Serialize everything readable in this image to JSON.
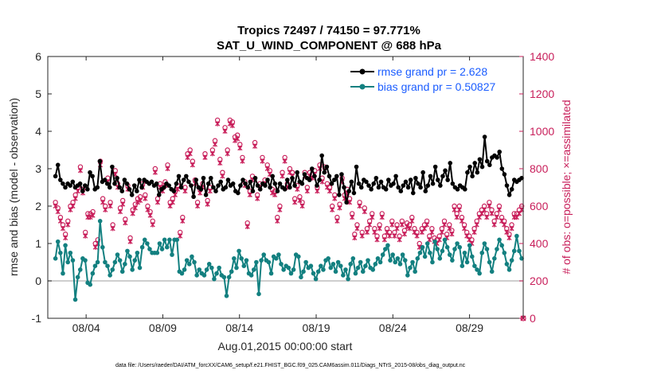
{
  "chart_data": {
    "type": "line",
    "title": "Tropics 72497 / 74150 = 97.771%",
    "subtitle": "SAT_U_WIND_COMPONENT @ 688 hPa",
    "xlabel": "Aug.01,2015 00:00:00 start",
    "ylabel": "rmse and bias (model - observation)",
    "y2label": "# of obs: o=possible; ×=assimilated",
    "xlim": [
      0.5,
      31.5
    ],
    "ylim": [
      -1,
      6
    ],
    "y2lim": [
      0,
      1400
    ],
    "x_ticks": [
      3,
      8,
      13,
      18,
      23,
      28
    ],
    "x_tick_labels": [
      "08/04",
      "08/09",
      "08/14",
      "08/19",
      "08/24",
      "08/29"
    ],
    "y_ticks": [
      -1,
      0,
      1,
      2,
      3,
      4,
      5,
      6
    ],
    "y2_ticks": [
      0,
      200,
      400,
      600,
      800,
      1000,
      1200,
      1400
    ],
    "zero_line": 0,
    "footer": "data file: /Users/raeder/DAI/ATM_forcXX/CAM6_setup/f.e21.FHIST_BGC.f09_025.CAM6assim.011/Diags_NTrS_2015-08/obs_diag_output.nc",
    "legend_position": "top-right",
    "series": [
      {
        "name": "rmse grand pr = 2.628",
        "color": "#000000",
        "axis": "left",
        "values": [
          2.8,
          3.1,
          2.7,
          2.6,
          2.5,
          2.6,
          2.55,
          2.65,
          2.5,
          2.55,
          2.6,
          2.4,
          2.55,
          2.45,
          2.9,
          2.8,
          2.45,
          2.5,
          3.2,
          2.65,
          2.7,
          2.6,
          2.5,
          3.05,
          2.6,
          2.75,
          2.5,
          2.4,
          2.7,
          2.6,
          2.45,
          2.3,
          2.55,
          2.4,
          2.7,
          2.5,
          2.7,
          2.65,
          2.6,
          2.65,
          2.55,
          2.6,
          2.3,
          2.45,
          2.5,
          2.6,
          2.55,
          2.45,
          2.4,
          2.6,
          2.8,
          2.5,
          2.7,
          2.8,
          2.65,
          2.55,
          2.25,
          2.7,
          2.5,
          2.45,
          2.75,
          2.3,
          2.6,
          2.75,
          2.5,
          2.4,
          2.55,
          2.65,
          2.45,
          2.5,
          2.7,
          2.55,
          2.6,
          2.4,
          2.35,
          2.55,
          2.7,
          2.6,
          2.5,
          2.65,
          2.4,
          2.75,
          2.55,
          2.45,
          2.6,
          2.55,
          2.7,
          2.5,
          2.8,
          2.6,
          2.4,
          2.6,
          2.5,
          2.45,
          2.7,
          2.5,
          2.75,
          2.55,
          2.9,
          2.65,
          2.6,
          2.85,
          2.75,
          2.7,
          3.0,
          2.8,
          2.55,
          2.7,
          3.35,
          2.9,
          3.05,
          2.8,
          2.6,
          2.7,
          2.8,
          2.3,
          2.85,
          2.5,
          2.1,
          2.4,
          2.65,
          2.35,
          3.05,
          2.6,
          2.5,
          2.7,
          2.65,
          2.55,
          2.45,
          2.6,
          2.75,
          2.5,
          2.65,
          2.5,
          2.45,
          2.7,
          2.55,
          2.6,
          2.8,
          2.5,
          2.4,
          2.55,
          2.65,
          2.5,
          2.7,
          2.35,
          2.75,
          2.6,
          2.5,
          2.9,
          2.4,
          2.55,
          2.8,
          2.6,
          3.05,
          2.7,
          2.55,
          2.8,
          2.95,
          2.7,
          3.15,
          2.6,
          2.5,
          2.45,
          2.55,
          2.5,
          2.45,
          2.9,
          3.05,
          2.8,
          3.15,
          2.9,
          3.25,
          3.05,
          3.85,
          3.2,
          3.1,
          3.3,
          3.35,
          3.3,
          3.45,
          3.0,
          2.85,
          2.55,
          2.3,
          2.45,
          2.7,
          2.65,
          2.7,
          2.75
        ]
      },
      {
        "name": "bias grand pr = 0.50827",
        "color": "#138080",
        "axis": "left",
        "values": [
          0.6,
          1.05,
          0.75,
          0.2,
          0.95,
          0.5,
          0.75,
          0.55,
          -0.5,
          0.1,
          0.3,
          0.6,
          0.55,
          -0.05,
          -0.1,
          0.2,
          0.4,
          0.5,
          1.6,
          0.9,
          0.5,
          0.4,
          0.15,
          0.3,
          0.5,
          0.7,
          0.55,
          0.25,
          0.45,
          0.8,
          0.65,
          0.3,
          0.55,
          0.75,
          0.35,
          0.9,
          1.1,
          1.0,
          0.85,
          0.75,
          0.75,
          0.75,
          1.0,
          0.85,
          1.1,
          0.9,
          1.1,
          0.7,
          1.1,
          1.1,
          0.25,
          0.2,
          0.3,
          0.55,
          0.45,
          0.65,
          0.5,
          0.15,
          0.3,
          0.2,
          0.15,
          0.3,
          0.45,
          0.35,
          0.05,
          0.2,
          0.35,
          0.15,
          0.1,
          -0.4,
          0.1,
          0.25,
          0.6,
          0.35,
          0.8,
          0.6,
          0.4,
          0.55,
          0.2,
          0.15,
          0.3,
          0.5,
          -0.35,
          0.55,
          0.7,
          0.55,
          0.5,
          0.2,
          0.65,
          0.6,
          0.7,
          0.45,
          0.3,
          0.4,
          0.35,
          0.2,
          0.3,
          0.7,
          0.65,
          0.1,
          0.25,
          0.5,
          0.35,
          0.4,
          0.2,
          0.05,
          0.25,
          0.4,
          0.3,
          0.55,
          0.6,
          0.35,
          0.45,
          0.25,
          0.5,
          0.4,
          0.15,
          0.3,
          0.05,
          0.45,
          0.6,
          0.2,
          0.35,
          0.5,
          0.25,
          0.4,
          0.55,
          0.35,
          0.3,
          0.45,
          0.6,
          0.5,
          0.7,
          0.85,
          0.95,
          0.55,
          0.7,
          0.5,
          0.6,
          0.45,
          0.7,
          0.55,
          0.15,
          0.35,
          0.5,
          0.25,
          0.6,
          0.75,
          0.9,
          0.65,
          1.0,
          0.75,
          0.5,
          1.05,
          0.85,
          0.6,
          0.8,
          1.1,
          0.9,
          0.7,
          0.55,
          0.85,
          1.0,
          0.9,
          0.4,
          0.75,
          0.5,
          0.95,
          0.65,
          0.4,
          0.3,
          0.2,
          0.75,
          1.0,
          0.85,
          0.5,
          0.25,
          0.6,
          0.85,
          1.1,
          0.95,
          0.75,
          0.45,
          0.3,
          0.55,
          0.8,
          1.2,
          0.8,
          0.6
        ]
      }
    ],
    "obs_possible": {
      "marker": "o",
      "color": "#c81e5a",
      "axis": "right",
      "values": [
        620,
        590,
        540,
        500,
        450,
        520,
        600,
        620,
        660,
        700,
        810,
        690,
        460,
        560,
        560,
        570,
        400,
        420,
        840,
        640,
        600,
        750,
        620,
        500,
        790,
        720,
        590,
        630,
        530,
        710,
        430,
        580,
        610,
        640,
        650,
        720,
        660,
        600,
        570,
        520,
        800,
        640,
        720,
        700,
        730,
        820,
        620,
        640,
        680,
        710,
        460,
        540,
        700,
        880,
        900,
        840,
        740,
        620,
        690,
        720,
        880,
        630,
        700,
        900,
        950,
        1060,
        850,
        780,
        1020,
        900,
        1060,
        1050,
        970,
        980,
        930,
        860,
        730,
        510,
        680,
        760,
        940,
        660,
        720,
        860,
        740,
        820,
        790,
        690,
        680,
        540,
        600,
        780,
        860,
        720,
        800,
        780,
        640,
        710,
        650,
        620,
        780,
        700,
        780,
        770,
        790,
        700,
        820,
        750,
        810,
        720,
        700,
        600,
        660,
        540,
        610,
        750,
        660,
        690,
        640,
        560,
        450,
        500,
        620,
        460,
        590,
        480,
        520,
        560,
        480,
        440,
        500,
        560,
        440,
        480,
        460,
        520,
        460,
        500,
        440,
        520,
        470,
        510,
        500,
        540,
        480,
        460,
        400,
        480,
        500,
        520,
        440,
        480,
        430,
        420,
        440,
        480,
        520,
        450,
        500,
        470,
        600,
        560,
        600,
        540,
        500,
        460,
        440,
        420,
        480,
        520,
        560,
        580,
        600,
        560,
        620,
        580,
        520,
        560,
        600,
        540,
        520,
        480,
        450,
        500,
        560,
        560,
        580,
        600
      ]
    },
    "obs_assimilated": {
      "marker": "x",
      "color": "#c81e5a",
      "axis": "right",
      "values": [
        600,
        570,
        520,
        480,
        430,
        500,
        580,
        600,
        640,
        680,
        790,
        670,
        440,
        540,
        540,
        550,
        380,
        400,
        820,
        620,
        580,
        730,
        600,
        480,
        770,
        700,
        570,
        610,
        510,
        690,
        410,
        560,
        590,
        620,
        630,
        700,
        640,
        580,
        550,
        500,
        780,
        620,
        700,
        680,
        710,
        800,
        600,
        620,
        660,
        690,
        440,
        520,
        680,
        860,
        880,
        820,
        720,
        600,
        670,
        700,
        860,
        610,
        680,
        880,
        930,
        1040,
        830,
        760,
        1000,
        880,
        1040,
        1030,
        950,
        960,
        910,
        840,
        710,
        490,
        660,
        740,
        920,
        640,
        700,
        840,
        720,
        800,
        770,
        670,
        660,
        520,
        580,
        760,
        840,
        700,
        780,
        760,
        620,
        690,
        630,
        600,
        760,
        680,
        760,
        750,
        770,
        680,
        800,
        730,
        790,
        700,
        680,
        580,
        640,
        520,
        590,
        730,
        640,
        670,
        620,
        540,
        430,
        480,
        600,
        440,
        570,
        460,
        500,
        540,
        460,
        420,
        480,
        540,
        420,
        460,
        440,
        500,
        440,
        480,
        420,
        500,
        450,
        490,
        480,
        520,
        460,
        440,
        380,
        460,
        480,
        500,
        420,
        460,
        410,
        400,
        420,
        460,
        500,
        430,
        480,
        450,
        580,
        540,
        580,
        520,
        480,
        440,
        420,
        400,
        460,
        500,
        540,
        560,
        580,
        540,
        600,
        560,
        500,
        540,
        580,
        520,
        500,
        460,
        430,
        480,
        540,
        540,
        560,
        580
      ]
    }
  }
}
